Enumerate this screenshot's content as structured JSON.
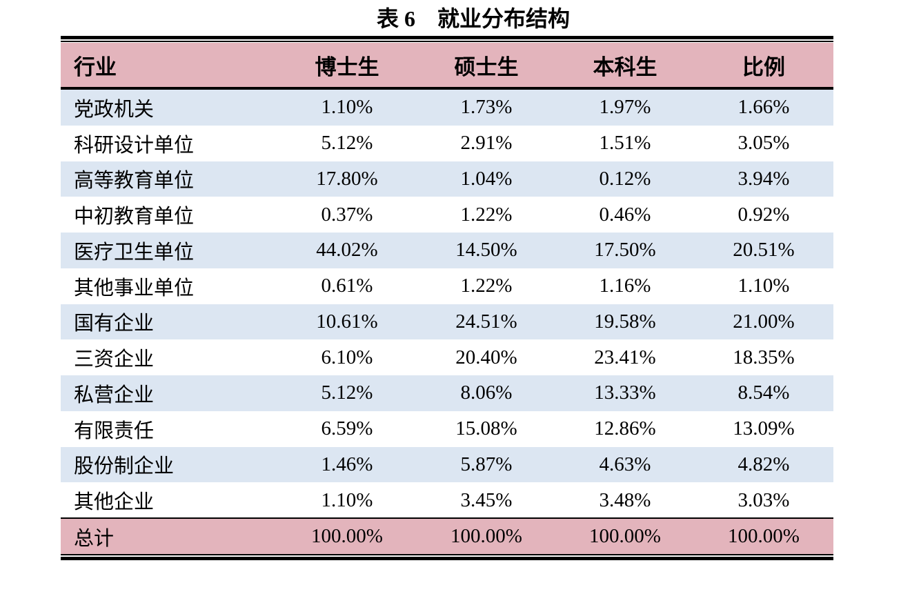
{
  "title": "表 6　就业分布结构",
  "table": {
    "header": [
      "行业",
      "博士生",
      "硕士生",
      "本科生",
      "比例"
    ],
    "rows": [
      [
        "党政机关",
        "1.10%",
        "1.73%",
        "1.97%",
        "1.66%"
      ],
      [
        "科研设计单位",
        "5.12%",
        "2.91%",
        "1.51%",
        "3.05%"
      ],
      [
        "高等教育单位",
        "17.80%",
        "1.04%",
        "0.12%",
        "3.94%"
      ],
      [
        "中初教育单位",
        "0.37%",
        "1.22%",
        "0.46%",
        "0.92%"
      ],
      [
        "医疗卫生单位",
        "44.02%",
        "14.50%",
        "17.50%",
        "20.51%"
      ],
      [
        "其他事业单位",
        "0.61%",
        "1.22%",
        "1.16%",
        "1.10%"
      ],
      [
        "国有企业",
        "10.61%",
        "24.51%",
        "19.58%",
        "21.00%"
      ],
      [
        "三资企业",
        "6.10%",
        "20.40%",
        "23.41%",
        "18.35%"
      ],
      [
        "私营企业",
        "5.12%",
        "8.06%",
        "13.33%",
        "8.54%"
      ],
      [
        "有限责任",
        "6.59%",
        "15.08%",
        "12.86%",
        "13.09%"
      ],
      [
        "股份制企业",
        "1.46%",
        "5.87%",
        "4.63%",
        "4.82%"
      ],
      [
        "其他企业",
        "1.10%",
        "3.45%",
        "3.48%",
        "3.03%"
      ]
    ],
    "total": [
      "总计",
      "100.00%",
      "100.00%",
      "100.00%",
      "100.00%"
    ]
  }
}
